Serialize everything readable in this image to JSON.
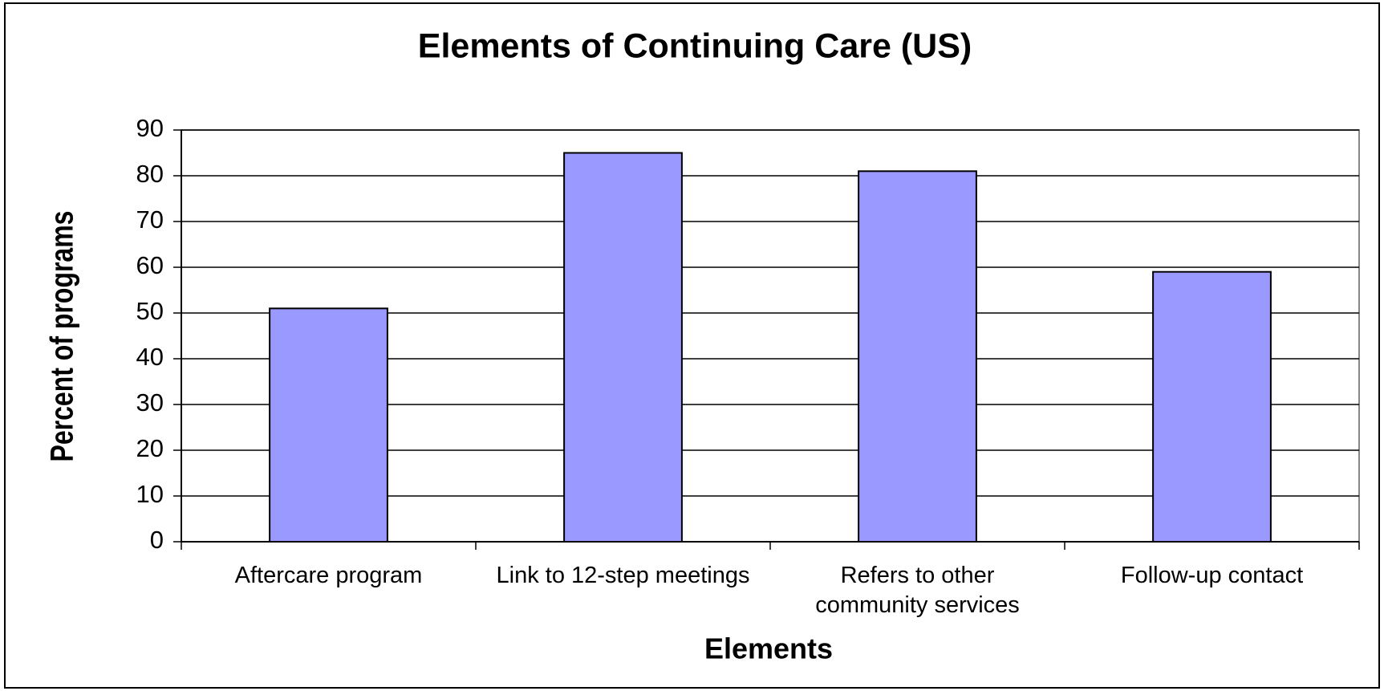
{
  "chart_data": {
    "type": "bar",
    "title": "Elements of Continuing Care (US)",
    "x_label": "Elements",
    "y_label": "Percent of programs",
    "categories": [
      "Aftercare program",
      "Link to 12-step meetings",
      "Refers to other community services",
      "Follow-up contact"
    ],
    "values": [
      51,
      85,
      81,
      59
    ],
    "color": "#9999ff",
    "ylim": [
      0,
      90
    ],
    "yticks": [
      0,
      10,
      20,
      30,
      40,
      50,
      60,
      70,
      80,
      90
    ],
    "grid": true
  }
}
